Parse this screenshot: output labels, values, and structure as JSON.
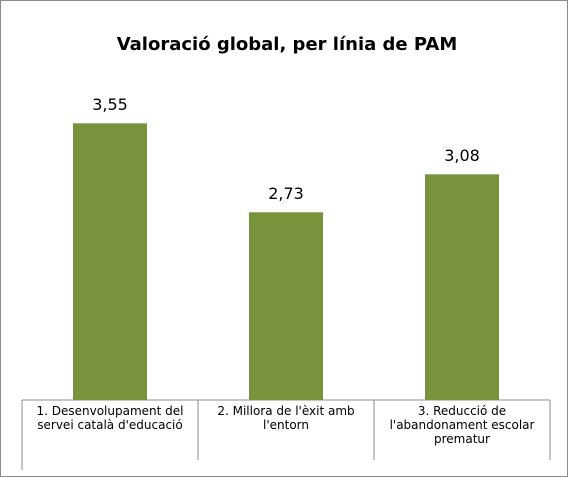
{
  "chart_data": {
    "type": "bar",
    "title": "Valoració global, per línia de PAM",
    "categories": [
      "1. Desenvolupament del servei català d'educació",
      "2. Millora de l'èxit amb l'entorn",
      "3. Reducció de l'abandonament escolar prematur"
    ],
    "values": [
      3.55,
      2.73,
      3.08
    ],
    "value_labels": [
      "3,55",
      "2,73",
      "3,08"
    ],
    "color": "#77933c",
    "ylim": [
      1,
      4
    ]
  }
}
